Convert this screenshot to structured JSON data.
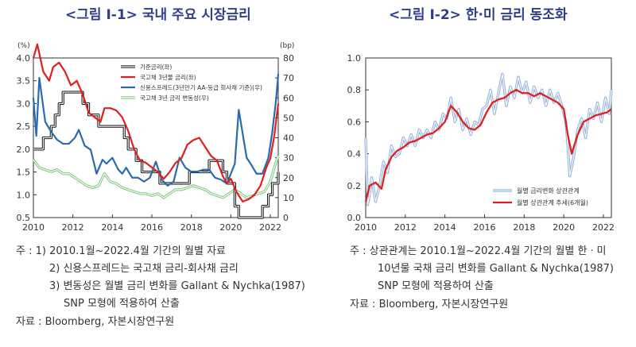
{
  "left": {
    "title": "<그림 Ⅰ-1> 국내 주요 시장금리",
    "unit_left": "(%)",
    "unit_right": "(bp)",
    "y_left_ticks": [
      "4.0",
      "3.5",
      "3.0",
      "2.5",
      "2.0",
      "1.5",
      "1.0",
      "0.5"
    ],
    "y_right_ticks": [
      "80",
      "70",
      "60",
      "50",
      "40",
      "30",
      "20",
      "10",
      "0"
    ],
    "x_ticks": [
      "2010",
      "2012",
      "2014",
      "2016",
      "2018",
      "2020",
      "2022"
    ],
    "legend": [
      "기준금리(좌)",
      "국고채 3년물 금리(좌)",
      "신용스프레드(3년만기 AA-등급 회사채 기준)(우)",
      "국고채 3년 금리 변동성(우)"
    ],
    "notes": {
      "n1": "주    : 1) 2010.1월~2022.4월 기간의 월별 자료",
      "n2": "2) 신용스프레드는 국고채 금리-회사채 금리",
      "n3": "3) 변동성은 월별 금리 변화를 Gallant & Nychka(1987)",
      "n4": "SNP 모형에 적용하여 산출",
      "n5": "자료 : Bloomberg, 자본시장연구원"
    }
  },
  "right": {
    "title": "<그림 Ⅰ-2> 한·미 금리 동조화",
    "y_ticks": [
      "1.0",
      "0.8",
      "0.6",
      "0.4",
      "0.2",
      "0.0"
    ],
    "x_ticks": [
      "2010",
      "2012",
      "2014",
      "2016",
      "2018",
      "2020",
      "2022"
    ],
    "legend": [
      "월별 금리변화 상관관계",
      "월별 상관관계 추세(6개월)"
    ],
    "notes": {
      "n1": "주    : 상관관계는 2010.1월~2022.4월 기간의 월별 한ㆍ미",
      "n2": "10년물 국채 금리 변화를 Gallant & Nychka(1987)",
      "n3": "SNP 모형에 적용하여 산출",
      "n4": "자료 : Bloomberg, 자본시장연구원"
    }
  },
  "chart_data": [
    {
      "type": "line",
      "title": "<그림 Ⅰ-1> 국내 주요 시장금리",
      "x_range": [
        2010,
        2022.4
      ],
      "y_left_range": [
        0.5,
        4.0
      ],
      "y_right_range": [
        0,
        80
      ],
      "legend_position": "top-right",
      "colors": {
        "base": "#111111",
        "ktb3y": "#e02020",
        "spread": "#2a6ab0",
        "vol": "#7ac87a"
      },
      "series": [
        {
          "name": "기준금리(좌)",
          "axis": "left",
          "x": [
            2010,
            2010.5,
            2010.7,
            2010.9,
            2011.1,
            2011.3,
            2011.5,
            2012.5,
            2012.8,
            2013.3,
            2014.6,
            2014.8,
            2015.2,
            2015.5,
            2016.4,
            2017.9,
            2018.9,
            2019.6,
            2019.8,
            2020.2,
            2020.4,
            2021.6,
            2021.9,
            2022.0,
            2022.1,
            2022.3,
            2022.4
          ],
          "y": [
            2.0,
            2.25,
            2.25,
            2.5,
            2.75,
            3.0,
            3.25,
            3.0,
            2.75,
            2.5,
            2.25,
            2.0,
            1.75,
            1.5,
            1.25,
            1.5,
            1.75,
            1.5,
            1.25,
            0.75,
            0.5,
            0.75,
            1.0,
            1.0,
            1.25,
            1.25,
            1.5
          ]
        },
        {
          "name": "국고채 3년물 금리(좌)",
          "axis": "left",
          "x": [
            2010,
            2010.2,
            2010.5,
            2010.8,
            2011.0,
            2011.3,
            2011.6,
            2011.9,
            2012.2,
            2012.5,
            2012.8,
            2013.1,
            2013.4,
            2013.6,
            2013.9,
            2014.2,
            2014.5,
            2014.8,
            2015.1,
            2015.4,
            2015.7,
            2016.0,
            2016.3,
            2016.6,
            2016.9,
            2017.2,
            2017.5,
            2017.8,
            2018.1,
            2018.4,
            2018.7,
            2019.0,
            2019.3,
            2019.6,
            2019.8,
            2020.0,
            2020.3,
            2020.6,
            2020.9,
            2021.2,
            2021.5,
            2021.8,
            2022.0,
            2022.2,
            2022.4
          ],
          "y": [
            4.0,
            4.3,
            3.7,
            3.5,
            3.8,
            3.9,
            3.7,
            3.4,
            3.5,
            3.2,
            2.8,
            2.7,
            2.6,
            2.9,
            2.9,
            2.85,
            2.7,
            2.4,
            2.0,
            1.75,
            1.7,
            1.6,
            1.5,
            1.35,
            1.5,
            1.7,
            1.8,
            2.1,
            2.2,
            2.25,
            2.05,
            1.85,
            1.75,
            1.4,
            1.25,
            1.35,
            1.05,
            0.85,
            0.9,
            1.0,
            1.2,
            1.6,
            1.8,
            2.3,
            3.0
          ]
        },
        {
          "name": "신용스프레드(3년만기 AA-등급 회사채 기준)(우)",
          "axis": "right",
          "x": [
            2010,
            2010.15,
            2010.3,
            2010.6,
            2010.9,
            2011.2,
            2011.5,
            2011.8,
            2012.1,
            2012.3,
            2012.6,
            2012.9,
            2013.2,
            2013.5,
            2013.7,
            2014.0,
            2014.3,
            2014.5,
            2014.7,
            2015.0,
            2015.3,
            2015.6,
            2015.9,
            2016.2,
            2016.5,
            2016.8,
            2017.1,
            2017.4,
            2017.7,
            2018.0,
            2018.3,
            2018.6,
            2018.9,
            2019.2,
            2019.5,
            2019.8,
            2020.0,
            2020.2,
            2020.4,
            2020.6,
            2020.8,
            2021.0,
            2021.3,
            2021.6,
            2021.9,
            2022.1,
            2022.3,
            2022.4
          ],
          "y": [
            60,
            41,
            70,
            48,
            43,
            39,
            37,
            37,
            40,
            44,
            36,
            34,
            22,
            29,
            27,
            30,
            24,
            22,
            25,
            20,
            20,
            18,
            20,
            28,
            19,
            16,
            18,
            30,
            25,
            23,
            23,
            24,
            24,
            20,
            19,
            17,
            22,
            27,
            54,
            42,
            30,
            27,
            22,
            22,
            30,
            43,
            60,
            72
          ]
        },
        {
          "name": "국고채 3년 금리 변동성(우)",
          "axis": "right",
          "x": [
            2010,
            2010.3,
            2010.6,
            2010.9,
            2011.2,
            2011.5,
            2011.8,
            2012.1,
            2012.4,
            2012.7,
            2013.0,
            2013.3,
            2013.6,
            2013.9,
            2014.2,
            2014.5,
            2014.8,
            2015.1,
            2015.4,
            2015.7,
            2016.0,
            2016.3,
            2016.6,
            2016.9,
            2017.2,
            2017.5,
            2017.8,
            2018.1,
            2018.4,
            2018.7,
            2019.0,
            2019.3,
            2019.6,
            2019.9,
            2020.2,
            2020.5,
            2020.8,
            2021.1,
            2021.4,
            2021.7,
            2022.0,
            2022.2,
            2022.4
          ],
          "y": [
            29,
            25,
            24,
            23,
            24,
            22,
            22,
            20,
            18,
            16,
            15,
            16,
            22,
            18,
            17,
            15,
            14,
            13,
            12,
            12,
            11,
            12,
            10,
            12,
            14,
            14,
            15,
            16,
            15,
            14,
            12,
            11,
            10,
            12,
            14,
            12,
            10,
            11,
            12,
            13,
            18,
            25,
            31
          ]
        }
      ]
    },
    {
      "type": "line",
      "title": "<그림 Ⅰ-2> 한·미 금리 동조화",
      "x_range": [
        2010,
        2022.4
      ],
      "y_range": [
        0.0,
        1.0
      ],
      "legend_position": "bottom-right",
      "colors": {
        "monthly": "#8fb0dd",
        "trend": "#e02020"
      },
      "series": [
        {
          "name": "월별 금리변화 상관관계",
          "x": [
            2010,
            2010.1,
            2010.2,
            2010.3,
            2010.5,
            2010.7,
            2010.9,
            2011.1,
            2011.3,
            2011.5,
            2011.7,
            2011.9,
            2012.1,
            2012.3,
            2012.5,
            2012.7,
            2012.9,
            2013.1,
            2013.3,
            2013.5,
            2013.7,
            2013.9,
            2014.1,
            2014.3,
            2014.5,
            2014.7,
            2014.9,
            2015.1,
            2015.3,
            2015.5,
            2015.7,
            2015.9,
            2016.1,
            2016.3,
            2016.5,
            2016.7,
            2016.9,
            2017.1,
            2017.3,
            2017.5,
            2017.7,
            2017.9,
            2018.1,
            2018.3,
            2018.5,
            2018.7,
            2018.9,
            2019.1,
            2019.3,
            2019.5,
            2019.7,
            2019.9,
            2020.1,
            2020.2,
            2020.3,
            2020.5,
            2020.7,
            2020.9,
            2021.1,
            2021.3,
            2021.5,
            2021.7,
            2021.9,
            2022.1,
            2022.3,
            2022.4
          ],
          "y": [
            0.5,
            0.08,
            0.15,
            0.25,
            0.1,
            0.2,
            0.35,
            0.28,
            0.45,
            0.38,
            0.4,
            0.5,
            0.45,
            0.52,
            0.45,
            0.55,
            0.5,
            0.55,
            0.5,
            0.6,
            0.55,
            0.65,
            0.62,
            0.75,
            0.6,
            0.68,
            0.55,
            0.62,
            0.52,
            0.6,
            0.58,
            0.68,
            0.7,
            0.8,
            0.65,
            0.78,
            0.9,
            0.7,
            0.82,
            0.75,
            0.88,
            0.78,
            0.85,
            0.72,
            0.82,
            0.75,
            0.8,
            0.7,
            0.8,
            0.72,
            0.78,
            0.7,
            0.6,
            0.45,
            0.26,
            0.38,
            0.55,
            0.62,
            0.5,
            0.68,
            0.62,
            0.72,
            0.6,
            0.75,
            0.65,
            0.8
          ]
        },
        {
          "name": "월별 상관관계 추세(6개월)",
          "x": [
            2010,
            2010.2,
            2010.5,
            2010.8,
            2011.0,
            2011.3,
            2011.6,
            2011.9,
            2012.2,
            2012.5,
            2012.8,
            2013.1,
            2013.4,
            2013.7,
            2014.0,
            2014.3,
            2014.6,
            2014.9,
            2015.2,
            2015.5,
            2015.8,
            2016.1,
            2016.4,
            2016.7,
            2017.0,
            2017.3,
            2017.6,
            2017.9,
            2018.2,
            2018.5,
            2018.8,
            2019.1,
            2019.4,
            2019.7,
            2020.0,
            2020.2,
            2020.4,
            2020.7,
            2021.0,
            2021.3,
            2021.6,
            2021.9,
            2022.2,
            2022.4
          ],
          "y": [
            0.1,
            0.2,
            0.22,
            0.18,
            0.3,
            0.38,
            0.42,
            0.44,
            0.47,
            0.48,
            0.5,
            0.52,
            0.53,
            0.56,
            0.6,
            0.7,
            0.66,
            0.6,
            0.56,
            0.55,
            0.58,
            0.66,
            0.72,
            0.74,
            0.75,
            0.78,
            0.8,
            0.78,
            0.78,
            0.76,
            0.78,
            0.76,
            0.74,
            0.72,
            0.68,
            0.52,
            0.4,
            0.52,
            0.6,
            0.62,
            0.64,
            0.65,
            0.66,
            0.68
          ]
        }
      ]
    }
  ]
}
